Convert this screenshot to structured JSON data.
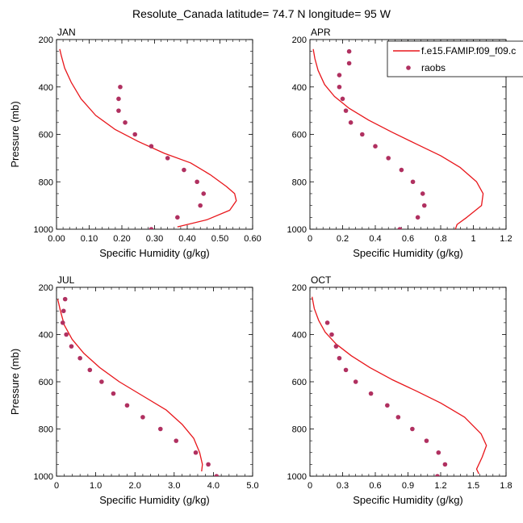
{
  "figure_title": "Resolute_Canada  latitude= 74.7 N longitude= 95 W",
  "legend": {
    "model_label": "f.e15.FAMIP.f09_f09.c",
    "obs_label": "raobs"
  },
  "colors": {
    "model_line": "#e8161b",
    "obs_marker": "#b03060",
    "axis": "#000000"
  },
  "chart_data": [
    {
      "type": "line",
      "title": "JAN",
      "xlabel": "Specific Humidity (g/kg)",
      "ylabel": "Pressure (mb)",
      "xlim": [
        0,
        0.6
      ],
      "ylim": [
        200,
        1000
      ],
      "y_reversed": true,
      "xticks": [
        "0.00",
        "0.10",
        "0.20",
        "0.30",
        "0.40",
        "0.50",
        "0.60"
      ],
      "yticks": [
        "200",
        "400",
        "600",
        "800",
        "1000"
      ],
      "series": [
        {
          "name": "f.e15.FAMIP.f09_f09.c",
          "kind": "line",
          "x": [
            0.01,
            0.015,
            0.025,
            0.045,
            0.075,
            0.12,
            0.18,
            0.25,
            0.33,
            0.41,
            0.47,
            0.52,
            0.545,
            0.55,
            0.53,
            0.46,
            0.37
          ],
          "y": [
            240,
            270,
            320,
            380,
            450,
            520,
            580,
            630,
            680,
            720,
            770,
            820,
            850,
            880,
            920,
            960,
            990
          ]
        },
        {
          "name": "raobs",
          "kind": "scatter",
          "x": [
            0.195,
            0.19,
            0.19,
            0.21,
            0.24,
            0.29,
            0.34,
            0.39,
            0.43,
            0.45,
            0.44,
            0.37,
            0.29
          ],
          "y": [
            400,
            450,
            500,
            550,
            600,
            650,
            700,
            750,
            800,
            850,
            900,
            950,
            1000
          ]
        }
      ]
    },
    {
      "type": "line",
      "title": "APR",
      "xlabel": "Specific Humidity (g/kg)",
      "ylabel": "",
      "xlim": [
        0,
        1.2
      ],
      "ylim": [
        200,
        1000
      ],
      "y_reversed": true,
      "xticks": [
        "0",
        "0.2",
        "0.4",
        "0.6",
        "0.8",
        "1",
        "1.2"
      ],
      "yticks": [
        "200",
        "400",
        "600",
        "800",
        "1000"
      ],
      "series": [
        {
          "name": "f.e15.FAMIP.f09_f09.c",
          "kind": "line",
          "x": [
            0.02,
            0.03,
            0.05,
            0.09,
            0.15,
            0.24,
            0.36,
            0.5,
            0.65,
            0.8,
            0.92,
            1.02,
            1.06,
            1.05,
            0.96,
            0.9,
            0.89
          ],
          "y": [
            240,
            280,
            330,
            390,
            440,
            490,
            540,
            590,
            640,
            690,
            740,
            800,
            850,
            900,
            950,
            980,
            1000
          ]
        },
        {
          "name": "raobs",
          "kind": "scatter",
          "x": [
            0.24,
            0.24,
            0.18,
            0.18,
            0.2,
            0.22,
            0.25,
            0.32,
            0.4,
            0.48,
            0.56,
            0.63,
            0.69,
            0.7,
            0.66,
            0.55
          ],
          "y": [
            250,
            300,
            350,
            400,
            450,
            500,
            550,
            600,
            650,
            700,
            750,
            800,
            850,
            900,
            950,
            1000
          ]
        }
      ]
    },
    {
      "type": "line",
      "title": "JUL",
      "xlabel": "Specific Humidity (g/kg)",
      "ylabel": "Pressure (mb)",
      "xlim": [
        0,
        5.0
      ],
      "ylim": [
        200,
        1000
      ],
      "y_reversed": true,
      "xticks": [
        "0",
        "1.0",
        "2.0",
        "3.0",
        "4.0",
        "5.0"
      ],
      "yticks": [
        "200",
        "400",
        "600",
        "800",
        "1000"
      ],
      "series": [
        {
          "name": "f.e15.FAMIP.f09_f09.c",
          "kind": "line",
          "x": [
            0.03,
            0.1,
            0.2,
            0.4,
            0.7,
            1.1,
            1.6,
            2.2,
            2.8,
            3.2,
            3.5,
            3.65,
            3.72,
            3.7
          ],
          "y": [
            250,
            300,
            360,
            420,
            480,
            540,
            600,
            660,
            720,
            780,
            840,
            900,
            950,
            980
          ]
        },
        {
          "name": "raobs",
          "kind": "scatter",
          "x": [
            0.22,
            0.18,
            0.16,
            0.25,
            0.38,
            0.6,
            0.85,
            1.15,
            1.45,
            1.8,
            2.2,
            2.65,
            3.05,
            3.55,
            3.87,
            4.08
          ],
          "y": [
            250,
            300,
            350,
            400,
            450,
            500,
            550,
            600,
            650,
            700,
            750,
            800,
            850,
            900,
            950,
            1000
          ]
        }
      ]
    },
    {
      "type": "line",
      "title": "OCT",
      "xlabel": "Specific Humidity (g/kg)",
      "ylabel": "",
      "xlim": [
        0,
        1.8
      ],
      "ylim": [
        200,
        1000
      ],
      "y_reversed": true,
      "xticks": [
        "0",
        "0.3",
        "0.6",
        "0.9",
        "1.2",
        "1.5",
        "1.8"
      ],
      "yticks": [
        "200",
        "400",
        "600",
        "800",
        "1000"
      ],
      "series": [
        {
          "name": "f.e15.FAMIP.f09_f09.c",
          "kind": "line",
          "x": [
            0.02,
            0.04,
            0.08,
            0.14,
            0.24,
            0.38,
            0.55,
            0.75,
            0.98,
            1.2,
            1.42,
            1.57,
            1.62,
            1.58,
            1.53,
            1.55
          ],
          "y": [
            240,
            290,
            340,
            390,
            440,
            490,
            540,
            590,
            640,
            690,
            750,
            820,
            870,
            920,
            970,
            990
          ]
        },
        {
          "name": "raobs",
          "kind": "scatter",
          "x": [
            0.16,
            0.2,
            0.24,
            0.27,
            0.33,
            0.42,
            0.56,
            0.71,
            0.81,
            0.94,
            1.07,
            1.18,
            1.24,
            1.17
          ],
          "y": [
            350,
            400,
            450,
            500,
            550,
            600,
            650,
            700,
            750,
            800,
            850,
            900,
            950,
            1000
          ]
        }
      ]
    }
  ]
}
